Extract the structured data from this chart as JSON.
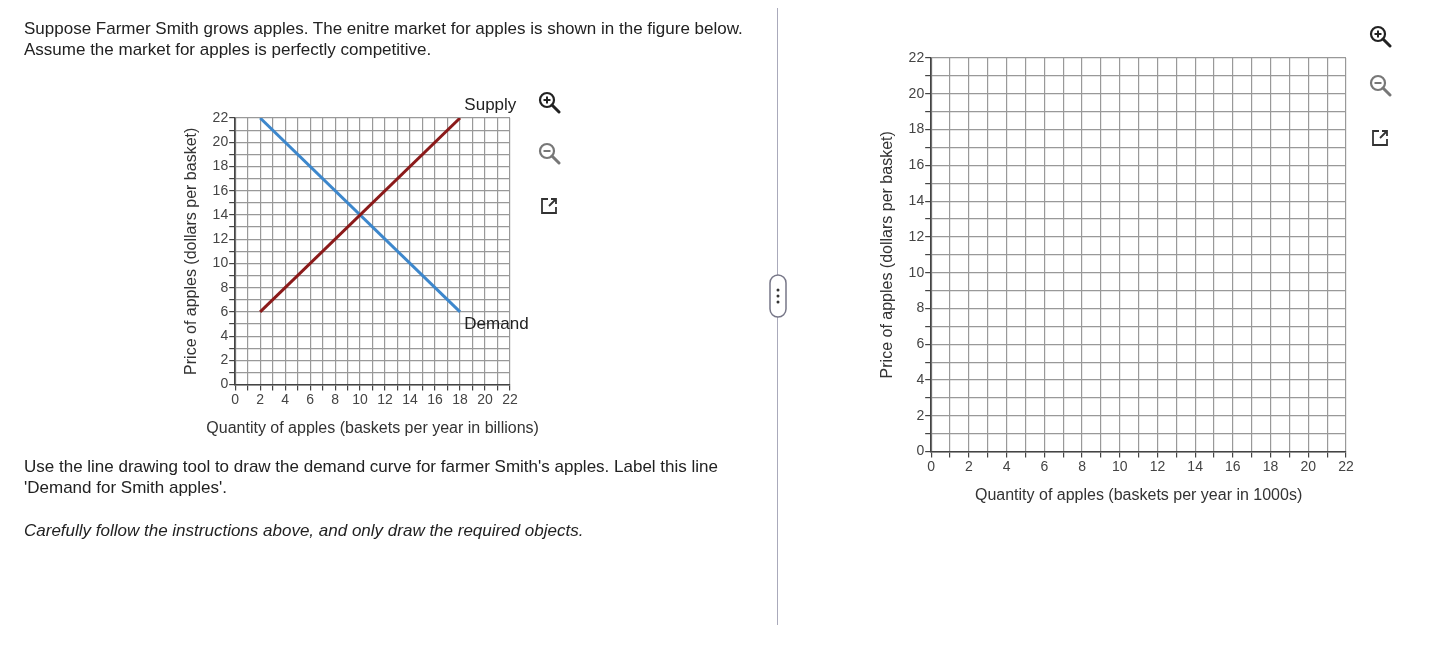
{
  "chart_data": [
    {
      "type": "line",
      "xlabel": "Quantity of apples (baskets per year in billions)",
      "ylabel": "Price of apples (dollars per basket)",
      "xlim": [
        0,
        22
      ],
      "ylim": [
        0,
        22
      ],
      "xticks": [
        0,
        {
          "value": 1,
          "label": null
        },
        2,
        {
          "value": 3,
          "label": null
        },
        4,
        {
          "value": 5,
          "label": null
        },
        6,
        {
          "value": 7,
          "label": null
        },
        8,
        {
          "value": 9,
          "label": null
        },
        10,
        {
          "value": 11,
          "label": null
        },
        12,
        {
          "value": 13,
          "label": null
        },
        14,
        {
          "value": 15,
          "label": null
        },
        16,
        {
          "value": 17,
          "label": null
        },
        18,
        {
          "value": 19,
          "label": null
        },
        20,
        {
          "value": 21,
          "label": null
        },
        22
      ],
      "yticks": [
        0,
        {
          "value": 1,
          "label": null
        },
        2,
        {
          "value": 3,
          "label": null
        },
        4,
        {
          "value": 5,
          "label": null
        },
        6,
        {
          "value": 7,
          "label": null
        },
        8,
        {
          "value": 9,
          "label": null
        },
        10,
        {
          "value": 11,
          "label": null
        },
        12,
        {
          "value": 13,
          "label": null
        },
        14,
        {
          "value": 15,
          "label": null
        },
        16,
        {
          "value": 17,
          "label": null
        },
        18,
        {
          "value": 19,
          "label": null
        },
        20,
        {
          "value": 21,
          "label": null
        },
        22
      ],
      "grid": true,
      "marker": "none",
      "line_style": "solid",
      "x": [
        2,
        18
      ],
      "series": [
        {
          "name": "Supply",
          "color": "#8b1a1a",
          "values": [
            6,
            22
          ]
        },
        {
          "name": "Demand",
          "color": "#3d87cc",
          "values": [
            22,
            6
          ]
        }
      ],
      "annotations": [
        "Suppose Farmer Smith grows apples. The enitre market for apples is shown in the figure below. Assume the market for apples is perfectly competitive.",
        "Use the line drawing tool to draw the demand curve for farmer Smith's apples. Label this line 'Demand for Smith apples'.",
        "Carefully follow the instructions above, and only draw the required objects."
      ]
    },
    {
      "type": "line",
      "xlabel": "Quantity of apples (baskets per year in 1000s)",
      "ylabel": "Price of apples (dollars per basket)",
      "xlim": [
        0,
        22
      ],
      "ylim": [
        0,
        22
      ],
      "xticks": [
        0,
        {
          "value": 1,
          "label": null
        },
        2,
        {
          "value": 3,
          "label": null
        },
        4,
        {
          "value": 5,
          "label": null
        },
        6,
        {
          "value": 7,
          "label": null
        },
        8,
        {
          "value": 9,
          "label": null
        },
        10,
        {
          "value": 11,
          "label": null
        },
        12,
        {
          "value": 13,
          "label": null
        },
        14,
        {
          "value": 15,
          "label": null
        },
        16,
        {
          "value": 17,
          "label": null
        },
        18,
        {
          "value": 19,
          "label": null
        },
        20,
        {
          "value": 21,
          "label": null
        },
        22
      ],
      "yticks": [
        0,
        {
          "value": 1,
          "label": null
        },
        2,
        {
          "value": 3,
          "label": null
        },
        4,
        {
          "value": 5,
          "label": null
        },
        6,
        {
          "value": 7,
          "label": null
        },
        8,
        {
          "value": 9,
          "label": null
        },
        10,
        {
          "value": 11,
          "label": null
        },
        12,
        {
          "value": 13,
          "label": null
        },
        14,
        {
          "value": 15,
          "label": null
        },
        16,
        {
          "value": 17,
          "label": null
        },
        18,
        {
          "value": 19,
          "label": null
        },
        20,
        {
          "value": 21,
          "label": null
        },
        22
      ],
      "grid": true
    }
  ]
}
